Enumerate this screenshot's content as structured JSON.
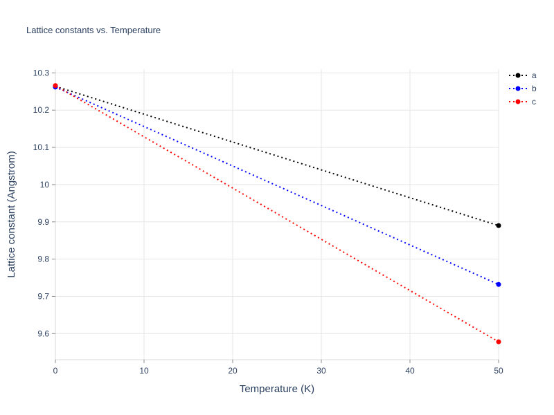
{
  "chart_data": {
    "type": "line",
    "title": "Lattice constants vs. Temperature",
    "xlabel": "Temperature (K)",
    "ylabel": "Lattice constant (Angstrom)",
    "x": [
      0,
      50
    ],
    "series": [
      {
        "name": "a",
        "color": "#000000",
        "values": [
          10.264,
          9.89
        ]
      },
      {
        "name": "b",
        "color": "#0000ff",
        "values": [
          10.262,
          9.732
        ]
      },
      {
        "name": "c",
        "color": "#ff0000",
        "values": [
          10.266,
          9.578
        ]
      }
    ],
    "x_ticks": [
      0,
      10,
      20,
      30,
      40,
      50
    ],
    "y_ticks": [
      9.6,
      9.7,
      9.8,
      9.9,
      10,
      10.1,
      10.2,
      10.3
    ],
    "xlim": [
      0,
      50
    ],
    "ylim": [
      9.53,
      10.31
    ],
    "grid": true,
    "line_style": "dotted",
    "legend_position": "top-right-outside",
    "style": {
      "text_color": "#2a3f5f",
      "grid_color": "#e6e6e6",
      "spine_color": "#d9d9d9",
      "tick_color": "#888888",
      "background": "#ffffff"
    }
  }
}
